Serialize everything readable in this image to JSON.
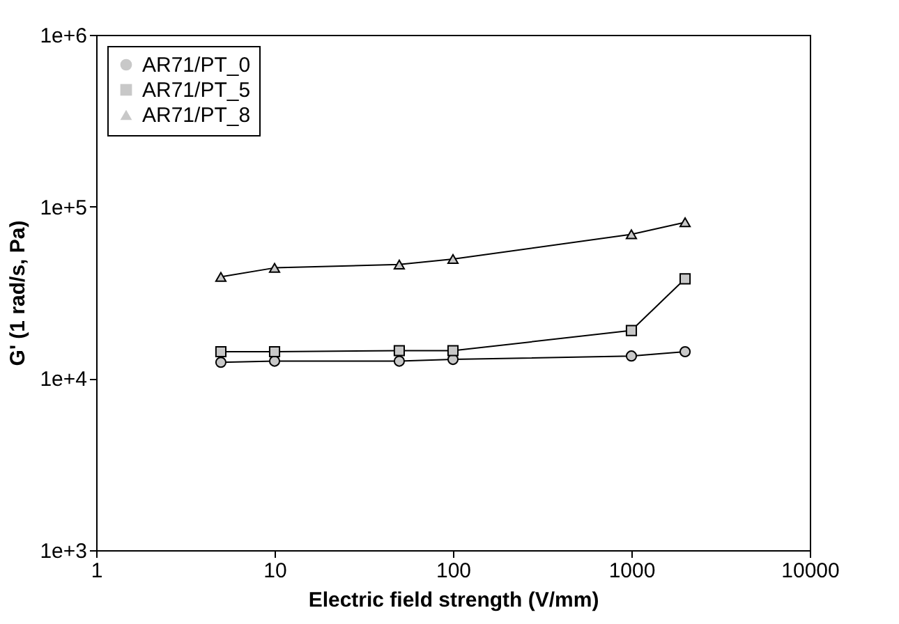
{
  "chart_data": {
    "type": "line",
    "xlabel": "Electric field strength (V/mm)",
    "ylabel": "G' (1 rad/s, Pa)",
    "log": "xy",
    "grid": false,
    "legend": "top left",
    "xlim": [
      1,
      10000
    ],
    "xticks": [
      1,
      10,
      100,
      1000,
      10000
    ],
    "ylim": [
      1000,
      1000000
    ],
    "yticks": [
      {
        "value": 1000,
        "label": "1e+3"
      },
      {
        "value": 10000,
        "label": "1e+4"
      },
      {
        "value": 100000,
        "label": "1e+5"
      },
      {
        "value": 1000000,
        "label": "1e+6"
      }
    ],
    "x": [
      5,
      10,
      50,
      100,
      1000,
      2000
    ],
    "series": [
      {
        "name": "AR71/PT_0",
        "color": "#000000",
        "marker": "circle",
        "values": [
          12400,
          12600,
          12600,
          12900,
          13500,
          14300
        ]
      },
      {
        "name": "AR71/PT_5",
        "color": "#000000",
        "marker": "square",
        "values": [
          14300,
          14300,
          14500,
          14500,
          19000,
          38000
        ]
      },
      {
        "name": "AR71/PT_8",
        "color": "#000000",
        "marker": "triangle",
        "values": [
          39000,
          44000,
          46000,
          49500,
          69000,
          81000
        ]
      }
    ]
  }
}
